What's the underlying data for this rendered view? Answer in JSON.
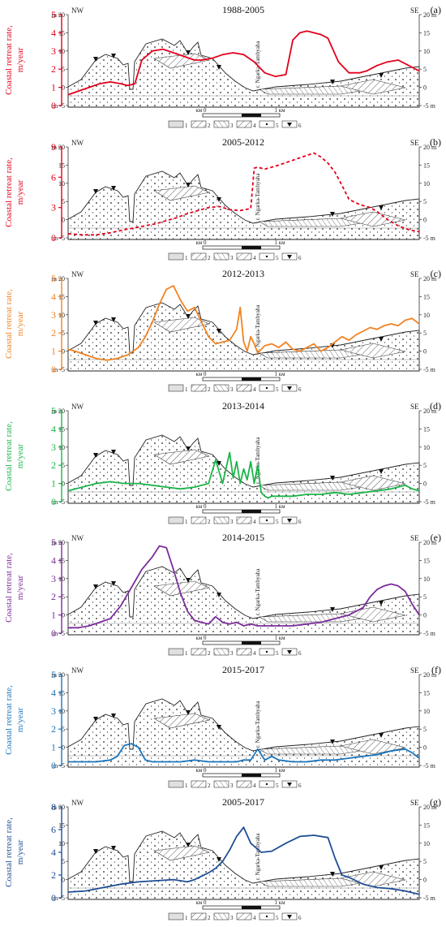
{
  "chart_data": [
    {
      "type": "line",
      "panel_label": "(a)",
      "title": "1988-2005",
      "color": "#e3001b",
      "dashed": false,
      "ylabel_line1": "Coastal retreat rate,",
      "ylabel_line2": "m/year",
      "ylim": [
        0,
        5
      ],
      "yticks": [
        "0",
        "1",
        "2",
        "3",
        "4",
        "5"
      ],
      "x": [
        0,
        3,
        6,
        9,
        12,
        15,
        17,
        19,
        21,
        24,
        27,
        30,
        33,
        36,
        38,
        41,
        44,
        47,
        50,
        53,
        56,
        59,
        62,
        64,
        66,
        68,
        70,
        72,
        74,
        77,
        80,
        83,
        85,
        88,
        91,
        94,
        97,
        100
      ],
      "series": [
        {
          "values": [
            0.6,
            0.8,
            1.0,
            1.2,
            1.3,
            1.2,
            1.1,
            1.2,
            2.5,
            3.0,
            3.1,
            2.9,
            2.7,
            2.5,
            2.5,
            2.6,
            2.8,
            2.9,
            2.8,
            2.4,
            1.8,
            1.6,
            1.7,
            3.6,
            4.0,
            4.1,
            4.0,
            3.9,
            3.7,
            2.4,
            1.8,
            1.8,
            1.9,
            2.2,
            2.4,
            2.5,
            2.2,
            1.9
          ]
        }
      ]
    },
    {
      "type": "line",
      "panel_label": "(b)",
      "title": "2005-2012",
      "color": "#e3001b",
      "dashed": true,
      "ylabel_line1": "Coastal retreat rate,",
      "ylabel_line2": "m/year",
      "ylim": [
        0,
        9
      ],
      "yticks": [
        "0",
        "3",
        "6",
        "9"
      ],
      "x": [
        0,
        4,
        8,
        12,
        16,
        19,
        22,
        25,
        28,
        31,
        34,
        37,
        40,
        43,
        46,
        49,
        52,
        53,
        54,
        56,
        60,
        65,
        70,
        72,
        74,
        76,
        78,
        80,
        83,
        86,
        88,
        91,
        94,
        97,
        100
      ],
      "series": [
        {
          "values": [
            0.4,
            0.3,
            0.3,
            0.5,
            0.8,
            1.0,
            1.2,
            1.4,
            1.7,
            2.0,
            2.4,
            2.7,
            3.0,
            3.1,
            2.8,
            2.7,
            2.9,
            6.9,
            7.0,
            6.8,
            7.2,
            7.8,
            8.4,
            8.0,
            7.4,
            6.5,
            5.2,
            3.8,
            3.3,
            3.0,
            2.6,
            1.8,
            1.2,
            0.8,
            0.6
          ]
        }
      ]
    },
    {
      "type": "line",
      "panel_label": "(c)",
      "title": "2012-2013",
      "color": "#f28322",
      "dashed": false,
      "ylabel_line1": "Coastal retreat rate,",
      "ylabel_line2": "m/year",
      "ylim": [
        0,
        5
      ],
      "yticks": [
        "0",
        "1",
        "2",
        "3",
        "4",
        "5"
      ],
      "x": [
        0,
        2,
        5,
        8,
        11,
        14,
        17,
        20,
        22,
        24,
        26,
        28,
        30,
        32,
        34,
        36,
        38,
        40,
        42,
        44,
        46,
        48,
        49,
        50,
        51,
        52,
        53,
        54,
        56,
        58,
        60,
        62,
        64,
        66,
        68,
        70,
        72,
        74,
        76,
        78,
        80,
        82,
        84,
        86,
        88,
        90,
        92,
        94,
        96,
        98,
        100
      ],
      "series": [
        {
          "values": [
            1.1,
            1.0,
            0.8,
            0.6,
            0.5,
            0.6,
            0.8,
            1.2,
            1.8,
            2.6,
            3.6,
            4.4,
            4.6,
            3.8,
            3.2,
            3.4,
            2.6,
            1.8,
            1.4,
            1.5,
            1.6,
            2.2,
            3.4,
            1.5,
            1.0,
            1.8,
            1.4,
            0.9,
            1.3,
            1.4,
            1.2,
            1.5,
            1.1,
            1.0,
            1.2,
            1.4,
            1.0,
            1.2,
            1.5,
            1.8,
            1.6,
            1.9,
            2.1,
            2.3,
            2.2,
            2.4,
            2.5,
            2.4,
            2.7,
            2.8,
            2.5
          ]
        }
      ]
    },
    {
      "type": "line",
      "panel_label": "(d)",
      "title": "2013-2014",
      "color": "#1ab54a",
      "dashed": false,
      "ylabel_line1": "Coastal retreat rate,",
      "ylabel_line2": "m/year",
      "ylim": [
        0,
        5
      ],
      "yticks": [
        "0",
        "1",
        "2",
        "3",
        "4",
        "5"
      ],
      "x": [
        0,
        4,
        8,
        12,
        16,
        20,
        24,
        28,
        32,
        36,
        40,
        42,
        44,
        46,
        47,
        48,
        49,
        50,
        51,
        52,
        53,
        54,
        55,
        56,
        57,
        58,
        60,
        64,
        68,
        72,
        76,
        80,
        84,
        88,
        92,
        96,
        98,
        100
      ],
      "series": [
        {
          "values": [
            0.6,
            0.8,
            1.0,
            1.1,
            1.0,
            1.0,
            0.9,
            0.8,
            0.7,
            0.8,
            1.0,
            2.3,
            1.0,
            2.7,
            1.3,
            2.2,
            1.0,
            1.8,
            1.2,
            2.2,
            1.0,
            2.0,
            0.5,
            0.3,
            0.2,
            0.3,
            0.3,
            0.3,
            0.4,
            0.4,
            0.5,
            0.4,
            0.5,
            0.6,
            0.7,
            0.9,
            0.7,
            0.6
          ]
        }
      ]
    },
    {
      "type": "line",
      "panel_label": "(e)",
      "title": "2014-2015",
      "color": "#7b2d9b",
      "dashed": false,
      "ylabel_line1": "Coastal retreat rate,",
      "ylabel_line2": "m/year",
      "ylim": [
        0,
        5
      ],
      "yticks": [
        "0",
        "1",
        "2",
        "3",
        "4",
        "5"
      ],
      "x": [
        0,
        3,
        6,
        9,
        12,
        15,
        18,
        21,
        24,
        26,
        28,
        30,
        32,
        34,
        36,
        38,
        40,
        42,
        44,
        46,
        48,
        50,
        52,
        54,
        56,
        60,
        64,
        68,
        72,
        76,
        80,
        84,
        86,
        88,
        90,
        92,
        94,
        96,
        98,
        100
      ],
      "series": [
        {
          "values": [
            0.3,
            0.3,
            0.4,
            0.6,
            0.8,
            1.5,
            2.5,
            3.5,
            4.2,
            4.8,
            4.7,
            3.5,
            2.2,
            1.2,
            0.7,
            0.6,
            0.5,
            0.9,
            0.6,
            0.5,
            0.6,
            0.4,
            0.5,
            0.4,
            0.4,
            0.4,
            0.4,
            0.5,
            0.6,
            0.8,
            1.0,
            1.4,
            2.0,
            2.4,
            2.6,
            2.7,
            2.6,
            2.3,
            1.6,
            1.0
          ]
        }
      ]
    },
    {
      "type": "line",
      "panel_label": "(f)",
      "title": "2015-2017",
      "color": "#1b75bc",
      "dashed": false,
      "ylabel_line1": "Coastal retreat rate,",
      "ylabel_line2": "m/year",
      "ylim": [
        0,
        5
      ],
      "yticks": [
        "0",
        "1",
        "2",
        "3",
        "4",
        "5"
      ],
      "x": [
        0,
        4,
        8,
        12,
        14,
        16,
        18,
        20,
        22,
        24,
        28,
        32,
        36,
        40,
        44,
        48,
        50,
        52,
        54,
        56,
        58,
        60,
        64,
        68,
        72,
        76,
        80,
        84,
        88,
        92,
        96,
        98,
        100
      ],
      "series": [
        {
          "values": [
            0.2,
            0.2,
            0.2,
            0.3,
            0.5,
            1.1,
            1.2,
            1.0,
            0.3,
            0.2,
            0.2,
            0.2,
            0.3,
            0.2,
            0.2,
            0.2,
            0.3,
            0.3,
            0.9,
            0.3,
            0.5,
            0.3,
            0.2,
            0.2,
            0.3,
            0.3,
            0.4,
            0.5,
            0.6,
            0.8,
            0.9,
            0.7,
            0.4
          ]
        }
      ]
    },
    {
      "type": "line",
      "panel_label": "(g)",
      "title": "2005-2017",
      "color": "#1f4e96",
      "dashed": false,
      "ylabel_line1": "Coastal retreat rate,",
      "ylabel_line2": "m/year",
      "ylim": [
        0,
        8
      ],
      "yticks": [
        "0",
        "2",
        "4",
        "6",
        "8"
      ],
      "x": [
        0,
        5,
        10,
        15,
        20,
        25,
        30,
        34,
        36,
        38,
        40,
        42,
        44,
        46,
        48,
        50,
        52,
        55,
        58,
        62,
        66,
        70,
        74,
        76,
        78,
        80,
        82,
        84,
        88,
        92,
        96,
        100
      ],
      "series": [
        {
          "values": [
            0.5,
            0.6,
            0.9,
            1.2,
            1.4,
            1.5,
            1.6,
            1.4,
            1.6,
            1.9,
            2.2,
            2.6,
            3.2,
            4.2,
            5.4,
            6.2,
            4.8,
            4.0,
            4.1,
            4.8,
            5.4,
            5.5,
            5.3,
            3.5,
            2.0,
            1.8,
            1.5,
            1.2,
            0.9,
            0.8,
            0.6,
            0.3
          ]
        }
      ]
    }
  ],
  "profile": {
    "nw_label": "NW",
    "se_label": "SE",
    "left_ticks": [
      "m 20",
      "15",
      "10",
      "5",
      "0",
      "m -5"
    ],
    "right_ticks": [
      "20 m",
      "15",
      "10",
      "5",
      "0",
      "-5 m"
    ],
    "place_name": "r. Ngarka-Tambyaha",
    "scale_left": "км 0",
    "scale_right": "1 км"
  },
  "legend": [
    {
      "number": "1"
    },
    {
      "number": "2"
    },
    {
      "number": "3"
    },
    {
      "number": "4"
    },
    {
      "number": "5"
    },
    {
      "number": "6"
    }
  ]
}
